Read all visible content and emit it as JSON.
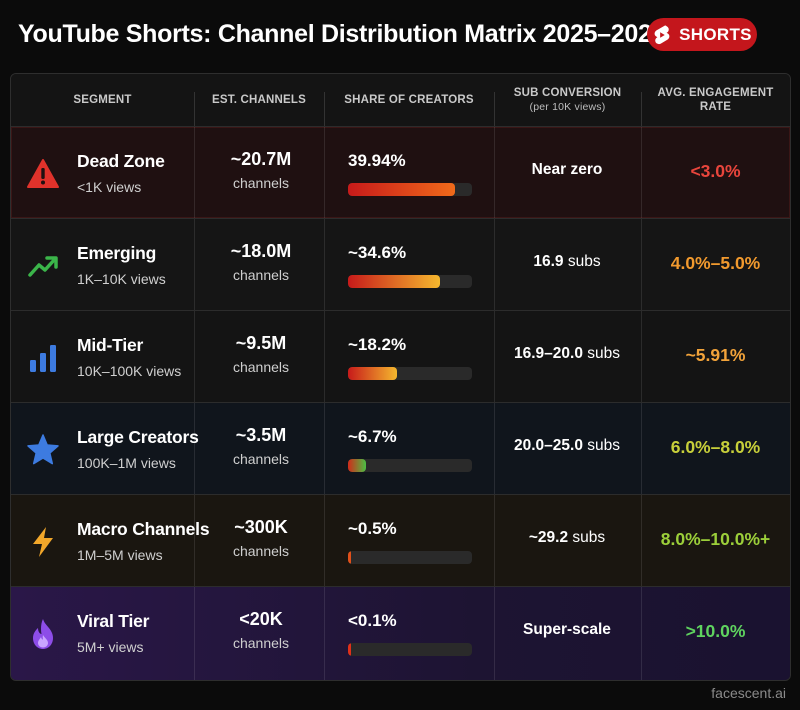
{
  "header": {
    "title": "YouTube Shorts: Channel Distribution Matrix 2025–2026",
    "badge_label": "SHORTS",
    "badge_icon": "youtube-shorts-icon",
    "badge_color": "#c4161c"
  },
  "columns": {
    "segment": "SEGMENT",
    "channels": "EST. CHANNELS",
    "share": "SHARE OF CREATORS",
    "conversion": "SUB CONVERSION",
    "conversion_sub": "(per 10K views)",
    "engagement": "AVG. ENGAGEMENT RATE"
  },
  "rows": [
    {
      "name": "Dead Zone",
      "views": "<1K views",
      "icon": "warning-icon",
      "channels": "~20.7M",
      "channels_unit": "channels",
      "share": "39.94%",
      "share_pct": 39.94,
      "conversion_num": "Near zero",
      "conversion_unit": "",
      "engagement": "<3.0%",
      "engagement_color": "#e8453c",
      "icon_color": "#e0322b",
      "row_bg": "#1f1011",
      "bar_gradient": [
        "#c71a1a",
        "#f06a1a"
      ]
    },
    {
      "name": "Emerging",
      "views": "1K–10K views",
      "icon": "trending-up-icon",
      "channels": "~18.0M",
      "channels_unit": "channels",
      "share": "~34.6%",
      "share_pct": 34.6,
      "conversion_num": "16.9",
      "conversion_unit": "subs",
      "engagement": "4.0%–5.0%",
      "engagement_color": "#f29a2e",
      "icon_color": "#3bb54a",
      "row_bg": "#151515",
      "bar_gradient": [
        "#c71a1a",
        "#f5b82e"
      ]
    },
    {
      "name": "Mid-Tier",
      "views": "10K–100K views",
      "icon": "bar-chart-icon",
      "channels": "~9.5M",
      "channels_unit": "channels",
      "share": "~18.2%",
      "share_pct": 18.2,
      "conversion_num": "16.9–20.0",
      "conversion_unit": "subs",
      "engagement": "~5.91%",
      "engagement_color": "#f2a33a",
      "icon_color": "#3d7be0",
      "row_bg": "#141414",
      "bar_gradient": [
        "#c71a1a",
        "#f5b82e"
      ]
    },
    {
      "name": "Large Creators",
      "views": "100K–1M views",
      "icon": "star-icon",
      "channels": "~3.5M",
      "channels_unit": "channels",
      "share": "~6.7%",
      "share_pct": 6.7,
      "conversion_num": "20.0–25.0",
      "conversion_unit": "subs",
      "engagement": "6.0%–8.0%",
      "engagement_color": "#c7cf3a",
      "icon_color": "#3d7be0",
      "row_bg": "#10151c",
      "bar_gradient": [
        "#d12a1a",
        "#4cbf44"
      ]
    },
    {
      "name": "Macro Channels",
      "views": "1M–5M views",
      "icon": "lightning-icon",
      "channels": "~300K",
      "channels_unit": "channels",
      "share": "~0.5%",
      "share_pct": 0.5,
      "conversion_num": "~29.2",
      "conversion_unit": "subs",
      "engagement": "8.0%–10.0%+",
      "engagement_color": "#9ccf3a",
      "icon_color": "#f2a72a",
      "row_bg": "#1a1610",
      "bar_gradient": [
        "#e0501a",
        "#e0501a"
      ]
    },
    {
      "name": "Viral Tier",
      "views": "5M+ views",
      "icon": "flame-icon",
      "channels": "<20K",
      "channels_unit": "channels",
      "share": "<0.1%",
      "share_pct": 0.1,
      "conversion_num": "Super-scale",
      "conversion_unit": "",
      "engagement": ">10.0%",
      "engagement_color": "#5fd35f",
      "icon_color": "#8d4de8",
      "row_bg": "#1e1330",
      "bar_gradient": [
        "#e0301a",
        "#e0301a"
      ]
    }
  ],
  "watermark": "facescent.ai"
}
